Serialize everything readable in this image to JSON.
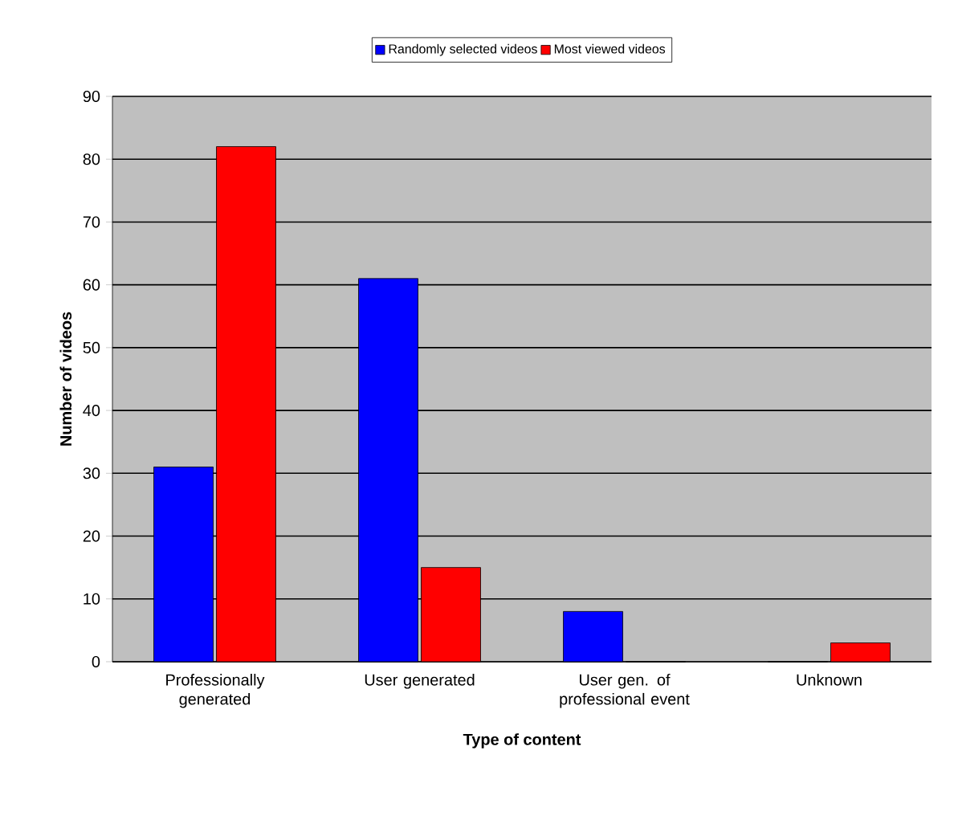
{
  "chart_data": {
    "type": "bar",
    "xlabel": "Type of content",
    "ylabel": "Number of videos",
    "categories": [
      "Professionally generated",
      "User generated",
      "User gen. of professional event",
      "Unknown"
    ],
    "series": [
      {
        "name": "Randomly selected videos",
        "color": "#0000ff",
        "values": [
          31,
          61,
          8,
          0
        ]
      },
      {
        "name": "Most viewed videos",
        "color": "#ff0000",
        "values": [
          82,
          15,
          0,
          3
        ]
      }
    ],
    "ylim": [
      0,
      90
    ],
    "yticks": [
      0,
      10,
      20,
      30,
      40,
      50,
      60,
      70,
      80,
      90
    ],
    "grid": "y",
    "legend": "top"
  }
}
